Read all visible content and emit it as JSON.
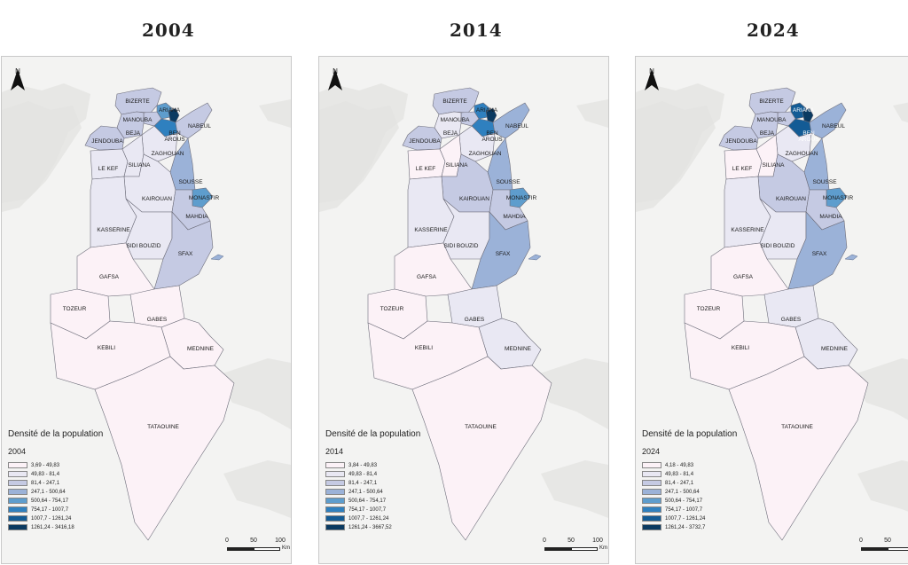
{
  "panels": [
    {
      "year": "2004",
      "north": "N",
      "legend_title": "Densité de la population",
      "legend_year": "2004",
      "classes": [
        "3,69 - 49,83",
        "49,83 - 81,4",
        "81,4 - 247,1",
        "247,1 - 500,64",
        "500,64 - 754,17",
        "754,17 - 1007,7",
        "1007,7 - 1261,24",
        "1261,24 - 3416,18"
      ],
      "scale": {
        "labels": [
          "0",
          "50",
          "100"
        ],
        "unit": "Km"
      },
      "regions": {
        "BIZERTE": 2,
        "ARIANA": 4,
        "MANOUBA": 2,
        "BEJA": 2,
        "TUNIS": 7,
        "BEN AROUS": 5,
        "NABEUL": 2,
        "JENDOUBA": 2,
        "ZAGHOUAN": 1,
        "SILIANA": 1,
        "LE KEF": 1,
        "SOUSSE": 3,
        "MONASTIR": 4,
        "KAIROUAN": 1,
        "MAHDIA": 2,
        "KASSERINE": 1,
        "SIDI BOUZID": 1,
        "SFAX": 2,
        "GAFSA": 0,
        "TOZEUR": 0,
        "GABES": 0,
        "KEBILI": 0,
        "MEDNINE": 0,
        "TATAOUINE": 0
      }
    },
    {
      "year": "2014",
      "north": "N",
      "legend_title": "Densité de la population",
      "legend_year": "2014",
      "classes": [
        "3,84 - 49,83",
        "49,83 - 81,4",
        "81,4 - 247,1",
        "247,1 - 500,64",
        "500,64 - 754,17",
        "754,17 - 1007,7",
        "1007,7 - 1261,24",
        "1261,24 - 3667,52"
      ],
      "scale": {
        "labels": [
          "0",
          "50",
          "100"
        ],
        "unit": "Km"
      },
      "regions": {
        "BIZERTE": 2,
        "ARIANA": 5,
        "MANOUBA": 2,
        "BEJA": 1,
        "TUNIS": 7,
        "BEN AROUS": 5,
        "NABEUL": 3,
        "JENDOUBA": 2,
        "ZAGHOUAN": 1,
        "SILIANA": 0,
        "LE KEF": 0,
        "SOUSSE": 3,
        "MONASTIR": 4,
        "KAIROUAN": 2,
        "MAHDIA": 2,
        "KASSERINE": 1,
        "SIDI BOUZID": 1,
        "SFAX": 3,
        "GAFSA": 0,
        "TOZEUR": 0,
        "GABES": 1,
        "KEBILI": 0,
        "MEDNINE": 1,
        "TATAOUINE": 0
      }
    },
    {
      "year": "2024",
      "north": "N",
      "legend_title": "Densité de la population",
      "legend_year": "2024",
      "classes": [
        "4,18 - 49,83",
        "49,83 - 81,4",
        "81,4 - 247,1",
        "247,1 - 500,64",
        "500,64 - 754,17",
        "754,17 - 1007,7",
        "1007,7 - 1261,24",
        "1261,24 - 3732,7"
      ],
      "scale": {
        "labels": [
          "0",
          "50",
          "100"
        ],
        "unit": "Km"
      },
      "regions": {
        "BIZERTE": 2,
        "ARIANA": 6,
        "MANOUBA": 2,
        "BEJA": 2,
        "TUNIS": 7,
        "BEN AROUS": 6,
        "NABEUL": 3,
        "JENDOUBA": 2,
        "ZAGHOUAN": 1,
        "SILIANA": 0,
        "LE KEF": 0,
        "SOUSSE": 3,
        "MONASTIR": 4,
        "KAIROUAN": 2,
        "MAHDIA": 2,
        "KASSERINE": 1,
        "SIDI BOUZID": 1,
        "SFAX": 3,
        "GAFSA": 0,
        "TOZEUR": 0,
        "GABES": 1,
        "KEBILI": 0,
        "MEDNINE": 1,
        "TATAOUINE": 0
      }
    }
  ],
  "class_colors": [
    "#fcf2f7",
    "#e9e8f3",
    "#c5cae3",
    "#9bb2d8",
    "#5e9dcd",
    "#2f80bf",
    "#135b95",
    "#0b3a61"
  ],
  "region_labels": {
    "BIZERTE": "BIZERTE",
    "ARIANA": "ARIANA",
    "MANOUBA": "MANOUBA",
    "BEJA": "BEJA",
    "TUNIS": "",
    "BEN AROUS": "BEN AROUS",
    "NABEUL": "NABEUL",
    "JENDOUBA": "JENDOUBA",
    "ZAGHOUAN": "ZAGHOUAN",
    "SILIANA": "SILIANA",
    "LE KEF": "LE KEF",
    "SOUSSE": "SOUSSE",
    "MONASTIR": "MONASTIR",
    "KAIROUAN": "KAIROUAN",
    "MAHDIA": "MAHDIA",
    "KASSERINE": "KASSERINE",
    "SIDI BOUZID": "SIDI BOUZID",
    "SFAX": "SFAX",
    "GAFSA": "GAFSA",
    "TOZEUR": "TOZEUR",
    "GABES": "GABES",
    "KEBILI": "KEBILI",
    "MEDNINE": "MEDNINE",
    "TATAOUINE": "TATAOUINE"
  }
}
